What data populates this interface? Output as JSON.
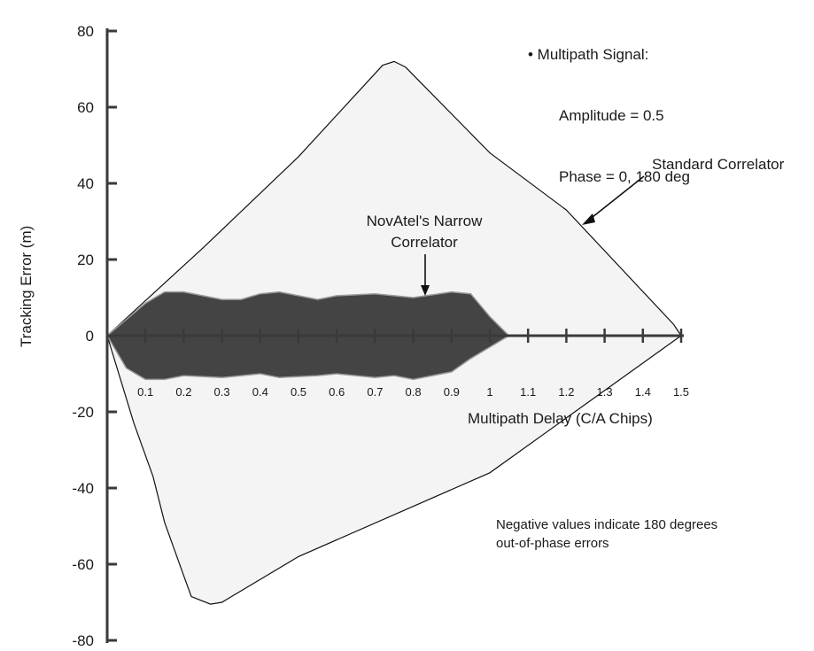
{
  "chart_data": {
    "type": "area",
    "ylabel": "Tracking Error (m)",
    "xlabel": "Multipath Delay (C/A Chips)",
    "xlim": [
      0,
      1.5
    ],
    "ylim": [
      -80,
      80
    ],
    "y_ticks": [
      80,
      60,
      40,
      20,
      0,
      -20,
      -40,
      -60,
      -80
    ],
    "x_ticks": [
      0.1,
      0.2,
      0.3,
      0.4,
      0.5,
      0.6,
      0.7,
      0.8,
      0.9,
      1,
      1.1,
      1.2,
      1.3,
      1.4,
      1.5
    ],
    "x_tick_labels": [
      "0.1",
      "0.2",
      "0.3",
      "0.4",
      "0.5",
      "0.6",
      "0.7",
      "0.8",
      "0.9",
      "1",
      "1.1",
      "1.2",
      "1.3",
      "1.4",
      "1.5"
    ],
    "series": [
      {
        "name": "Standard Correlator",
        "color": "#f4f4f4",
        "upper": {
          "x": [
            0,
            0.25,
            0.5,
            0.72,
            0.75,
            0.78,
            1.0,
            1.2,
            1.48,
            1.5
          ],
          "y": [
            0,
            23,
            47,
            71,
            72,
            70.5,
            48,
            33,
            3,
            0
          ]
        },
        "lower": {
          "x": [
            0,
            0.07,
            0.12,
            0.15,
            0.2,
            0.22,
            0.27,
            0.3,
            0.5,
            1.0,
            1.5
          ],
          "y": [
            0,
            -23,
            -37,
            -49,
            -63,
            -68.5,
            -70.5,
            -70,
            -58,
            -36,
            0
          ]
        }
      },
      {
        "name": "NovAtel's Narrow Correlator",
        "color": "#444444",
        "upper": {
          "x": [
            0,
            0.1,
            0.15,
            0.2,
            0.3,
            0.35,
            0.4,
            0.45,
            0.55,
            0.6,
            0.7,
            0.75,
            0.8,
            0.9,
            0.95,
            1.0,
            1.05,
            1.08
          ],
          "y": [
            0,
            8.5,
            11.5,
            11.5,
            9.5,
            9.5,
            11,
            11.5,
            9.5,
            10.5,
            11,
            10.5,
            10,
            11.5,
            11,
            5,
            0,
            0
          ]
        },
        "lower": {
          "x": [
            0,
            0.05,
            0.1,
            0.15,
            0.2,
            0.3,
            0.4,
            0.45,
            0.55,
            0.6,
            0.7,
            0.75,
            0.8,
            0.9,
            0.95,
            1.0,
            1.05,
            1.08
          ],
          "y": [
            0,
            -8.5,
            -11.5,
            -11.5,
            -10.5,
            -11,
            -10,
            -11,
            -10.5,
            -10,
            -11,
            -10.5,
            -11.5,
            -9.5,
            -6,
            -3,
            0,
            0
          ]
        }
      }
    ],
    "annotations": {
      "multipath_heading": "• Multipath Signal:",
      "amplitude": "Amplitude = 0.5",
      "phase": "Phase = 0, 180 deg",
      "standard": "Standard Correlator",
      "narrow_line1": "NovAtel's Narrow",
      "narrow_line2": "Correlator",
      "negative_line1": "Negative values indicate 180 degrees",
      "negative_line2": "out-of-phase errors"
    },
    "grid": false
  }
}
